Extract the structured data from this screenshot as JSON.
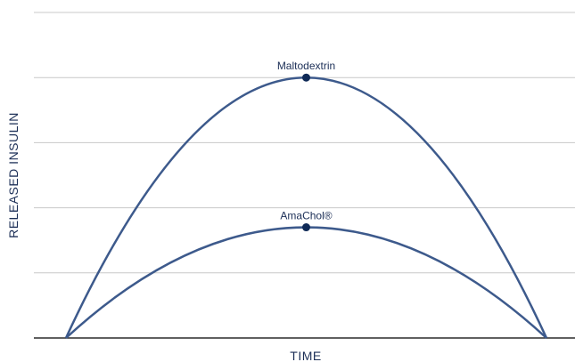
{
  "chart_data": {
    "type": "line",
    "xlabel": "TIME",
    "ylabel": "RELEASED INSULIN",
    "xlim": [
      0,
      1
    ],
    "ylim": [
      0,
      5
    ],
    "grid": true,
    "colors": {
      "curve": "#3d5a8c",
      "marker": "#0f2a57",
      "grid": "#c8c8c8",
      "axis": "#2b2b2b"
    },
    "series": [
      {
        "name": "Maltodextrin",
        "peak": {
          "x": 0.5,
          "y": 4.0
        },
        "x": [
          0,
          0.1,
          0.2,
          0.3,
          0.4,
          0.5,
          0.6,
          0.7,
          0.8,
          0.9,
          1.0
        ],
        "y": [
          0,
          1.44,
          2.56,
          3.36,
          3.84,
          4.0,
          3.84,
          3.36,
          2.56,
          1.44,
          0
        ]
      },
      {
        "name": "AmaChol®",
        "peak": {
          "x": 0.5,
          "y": 1.7
        },
        "x": [
          0,
          0.1,
          0.2,
          0.3,
          0.4,
          0.5,
          0.6,
          0.7,
          0.8,
          0.9,
          1.0
        ],
        "y": [
          0,
          0.612,
          1.088,
          1.428,
          1.632,
          1.7,
          1.632,
          1.428,
          1.088,
          0.612,
          0
        ]
      }
    ]
  }
}
